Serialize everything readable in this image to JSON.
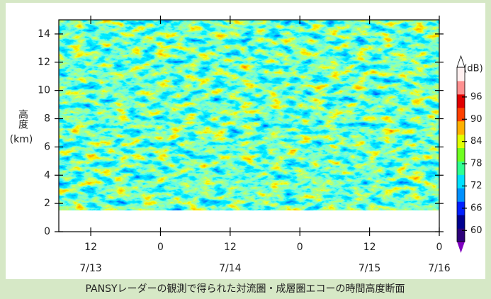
{
  "chart_data": {
    "type": "heatmap",
    "caption": "PANSYレーダーの観測で得られた対流圏・成層圏エコーの時間高度断面",
    "ylabel": "高度",
    "yunit": "(km)",
    "ylim": [
      0,
      15
    ],
    "yticks": [
      0,
      2,
      4,
      6,
      8,
      10,
      12,
      14
    ],
    "xlim": [
      6.5,
      72
    ],
    "xticks": [
      {
        "value": 12,
        "label": "12"
      },
      {
        "value": 24,
        "label": "0"
      },
      {
        "value": 36,
        "label": "12"
      },
      {
        "value": 48,
        "label": "0"
      },
      {
        "value": 60,
        "label": "12"
      },
      {
        "value": 72,
        "label": "0"
      }
    ],
    "date_labels": [
      {
        "value": 12,
        "label": "7/13"
      },
      {
        "value": 36,
        "label": "7/14"
      },
      {
        "value": 60,
        "label": "7/15"
      },
      {
        "value": 72,
        "label": "7/16"
      }
    ],
    "colorbar": {
      "label": "(dB)",
      "clim": [
        57,
        104
      ],
      "ticks": [
        60,
        66,
        72,
        78,
        84,
        90,
        96
      ],
      "colors": [
        "#2c007a",
        "#000090",
        "#0020ff",
        "#0090ff",
        "#00e0ff",
        "#30ff90",
        "#70ff20",
        "#e0ff00",
        "#ffb000",
        "#ff4000",
        "#e00000",
        "#ff9090",
        "#fff0f0"
      ]
    }
  }
}
